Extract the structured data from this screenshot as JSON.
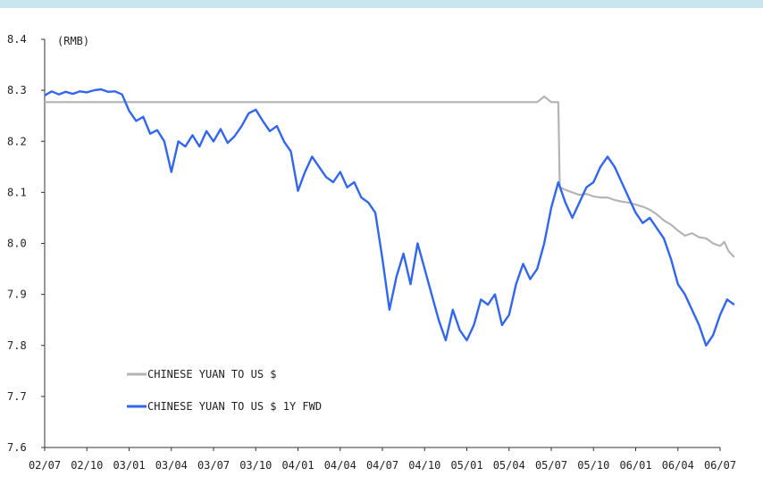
{
  "chart_data": {
    "type": "line",
    "unit_label": "(RMB)",
    "ylim": [
      7.6,
      8.4
    ],
    "y_ticks": [
      "7.6",
      "7.7",
      "7.8",
      "7.9",
      "8.0",
      "8.1",
      "8.2",
      "8.3",
      "8.4"
    ],
    "x_ticks": [
      "02/07",
      "02/10",
      "03/01",
      "03/04",
      "03/07",
      "03/10",
      "04/01",
      "04/04",
      "04/07",
      "04/10",
      "05/01",
      "05/04",
      "05/07",
      "05/10",
      "06/01",
      "06/04",
      "06/07"
    ],
    "legend_position": "bottom-left",
    "series": [
      {
        "name": "CHINESE YUAN TO US $",
        "color": "#b4b4b4",
        "points": [
          [
            0,
            8.277
          ],
          [
            2,
            8.277
          ],
          [
            4,
            8.277
          ],
          [
            6,
            8.277
          ],
          [
            8,
            8.277
          ],
          [
            10,
            8.277
          ],
          [
            12,
            8.277
          ],
          [
            14,
            8.277
          ],
          [
            16,
            8.277
          ],
          [
            18,
            8.277
          ],
          [
            20,
            8.277
          ],
          [
            22,
            8.277
          ],
          [
            24,
            8.277
          ],
          [
            26,
            8.277
          ],
          [
            28,
            8.277
          ],
          [
            30,
            8.277
          ],
          [
            32,
            8.277
          ],
          [
            34,
            8.277
          ],
          [
            35,
            8.277
          ],
          [
            35.5,
            8.288
          ],
          [
            36,
            8.277
          ],
          [
            36.5,
            8.277
          ],
          [
            36.6,
            8.11
          ],
          [
            37,
            8.105
          ],
          [
            37.5,
            8.1
          ],
          [
            38,
            8.095
          ],
          [
            38.5,
            8.097
          ],
          [
            39,
            8.092
          ],
          [
            39.5,
            8.09
          ],
          [
            40,
            8.09
          ],
          [
            40.5,
            8.085
          ],
          [
            41,
            8.082
          ],
          [
            41.5,
            8.08
          ],
          [
            42,
            8.076
          ],
          [
            42.5,
            8.072
          ],
          [
            43,
            8.066
          ],
          [
            43.5,
            8.057
          ],
          [
            44,
            8.045
          ],
          [
            44.5,
            8.037
          ],
          [
            45,
            8.025
          ],
          [
            45.5,
            8.015
          ],
          [
            46,
            8.02
          ],
          [
            46.5,
            8.012
          ],
          [
            47,
            8.01
          ],
          [
            47.5,
            8.0
          ],
          [
            48,
            7.995
          ],
          [
            48.3,
            8.003
          ],
          [
            48.6,
            7.985
          ],
          [
            49,
            7.973
          ]
        ]
      },
      {
        "name": "CHINESE YUAN TO US $ 1Y FWD",
        "color": "#3366ee",
        "points": [
          [
            0,
            8.29
          ],
          [
            0.5,
            8.298
          ],
          [
            1,
            8.292
          ],
          [
            1.5,
            8.297
          ],
          [
            2,
            8.293
          ],
          [
            2.5,
            8.298
          ],
          [
            3,
            8.296
          ],
          [
            3.5,
            8.3
          ],
          [
            4,
            8.302
          ],
          [
            4.5,
            8.297
          ],
          [
            5,
            8.298
          ],
          [
            5.5,
            8.292
          ],
          [
            6,
            8.26
          ],
          [
            6.5,
            8.24
          ],
          [
            7,
            8.248
          ],
          [
            7.5,
            8.215
          ],
          [
            8,
            8.222
          ],
          [
            8.5,
            8.2
          ],
          [
            9,
            8.14
          ],
          [
            9.5,
            8.2
          ],
          [
            10,
            8.19
          ],
          [
            10.5,
            8.212
          ],
          [
            11,
            8.19
          ],
          [
            11.5,
            8.22
          ],
          [
            12,
            8.2
          ],
          [
            12.5,
            8.224
          ],
          [
            13,
            8.197
          ],
          [
            13.5,
            8.21
          ],
          [
            14,
            8.23
          ],
          [
            14.5,
            8.255
          ],
          [
            15,
            8.262
          ],
          [
            15.5,
            8.24
          ],
          [
            16,
            8.22
          ],
          [
            16.5,
            8.23
          ],
          [
            17,
            8.2
          ],
          [
            17.5,
            8.18
          ],
          [
            18,
            8.103
          ],
          [
            18.5,
            8.14
          ],
          [
            19,
            8.17
          ],
          [
            19.5,
            8.15
          ],
          [
            20,
            8.13
          ],
          [
            20.5,
            8.12
          ],
          [
            21,
            8.14
          ],
          [
            21.5,
            8.11
          ],
          [
            22,
            8.12
          ],
          [
            22.5,
            8.09
          ],
          [
            23,
            8.08
          ],
          [
            23.5,
            8.06
          ],
          [
            24,
            7.97
          ],
          [
            24.5,
            7.87
          ],
          [
            25,
            7.935
          ],
          [
            25.5,
            7.98
          ],
          [
            26,
            7.92
          ],
          [
            26.5,
            8.0
          ],
          [
            27,
            7.95
          ],
          [
            27.5,
            7.9
          ],
          [
            28,
            7.85
          ],
          [
            28.5,
            7.81
          ],
          [
            29,
            7.87
          ],
          [
            29.5,
            7.83
          ],
          [
            30,
            7.81
          ],
          [
            30.5,
            7.84
          ],
          [
            31,
            7.89
          ],
          [
            31.5,
            7.88
          ],
          [
            32,
            7.9
          ],
          [
            32.5,
            7.84
          ],
          [
            33,
            7.86
          ],
          [
            33.5,
            7.92
          ],
          [
            34,
            7.96
          ],
          [
            34.5,
            7.93
          ],
          [
            35,
            7.95
          ],
          [
            35.5,
            8.0
          ],
          [
            36,
            8.07
          ],
          [
            36.5,
            8.12
          ],
          [
            37,
            8.08
          ],
          [
            37.5,
            8.05
          ],
          [
            38,
            8.08
          ],
          [
            38.5,
            8.11
          ],
          [
            39,
            8.12
          ],
          [
            39.5,
            8.15
          ],
          [
            40,
            8.17
          ],
          [
            40.5,
            8.15
          ],
          [
            41,
            8.12
          ],
          [
            41.5,
            8.09
          ],
          [
            42,
            8.06
          ],
          [
            42.5,
            8.04
          ],
          [
            43,
            8.05
          ],
          [
            43.5,
            8.03
          ],
          [
            44,
            8.01
          ],
          [
            44.5,
            7.97
          ],
          [
            45,
            7.92
          ],
          [
            45.5,
            7.9
          ],
          [
            46,
            7.87
          ],
          [
            46.5,
            7.84
          ],
          [
            47,
            7.8
          ],
          [
            47.5,
            7.82
          ],
          [
            48,
            7.86
          ],
          [
            48.5,
            7.89
          ],
          [
            49,
            7.88
          ]
        ]
      }
    ]
  }
}
